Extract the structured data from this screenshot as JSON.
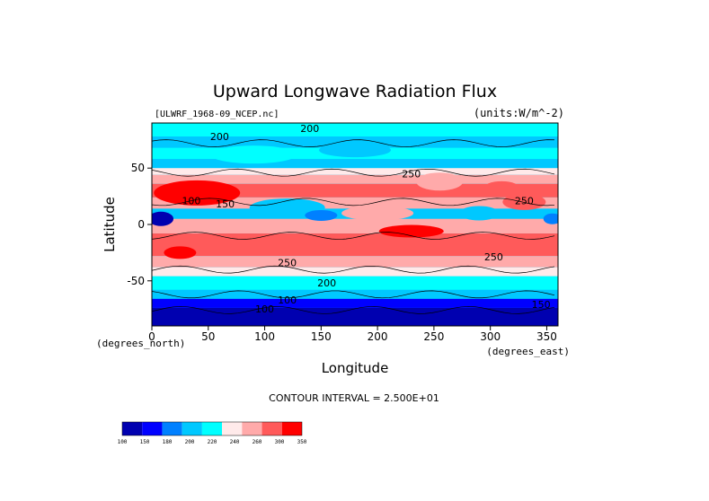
{
  "chart_data": {
    "type": "heatmap",
    "title": "Upward Longwave Radiation Flux",
    "dataset_label": "[ULWRF_1968-09_NCEP.nc]",
    "units_label": "(units:W/m^-2)",
    "xlabel": "Longitude",
    "ylabel": "Latitude",
    "x_unit_label": "(degrees_east)",
    "y_unit_label": "(degrees_north)",
    "xlim": [
      0,
      360
    ],
    "ylim": [
      -90,
      90
    ],
    "x_ticks": [
      "0",
      "50",
      "100",
      "150",
      "200",
      "250",
      "300",
      "350"
    ],
    "y_ticks": [
      "50",
      "0",
      "-50"
    ],
    "contour_interval_text": "CONTOUR INTERVAL = 2.500E+01",
    "contour_labels": [
      {
        "text": "200",
        "lon": 60,
        "lat": 75
      },
      {
        "text": "200",
        "lon": 140,
        "lat": 82
      },
      {
        "text": "250",
        "lon": 230,
        "lat": 42
      },
      {
        "text": "100",
        "lon": 35,
        "lat": 18
      },
      {
        "text": "150",
        "lon": 65,
        "lat": 15
      },
      {
        "text": "250",
        "lon": 330,
        "lat": 18
      },
      {
        "text": "250",
        "lon": 120,
        "lat": -37
      },
      {
        "text": "250",
        "lon": 303,
        "lat": -32
      },
      {
        "text": "200",
        "lon": 155,
        "lat": -55
      },
      {
        "text": "100",
        "lon": 100,
        "lat": -78
      },
      {
        "text": "100",
        "lon": 120,
        "lat": -70
      },
      {
        "text": "150",
        "lon": 345,
        "lat": -74
      }
    ],
    "colorbar": {
      "levels": [
        "100",
        "150",
        "180",
        "200",
        "220",
        "240",
        "260",
        "300",
        "350"
      ],
      "colors": [
        "#0000b0",
        "#0000ff",
        "#0080ff",
        "#00c8ff",
        "#00ffff",
        "#ffeaea",
        "#ffaaaa",
        "#ff5a5a",
        "#ff0000"
      ]
    }
  }
}
